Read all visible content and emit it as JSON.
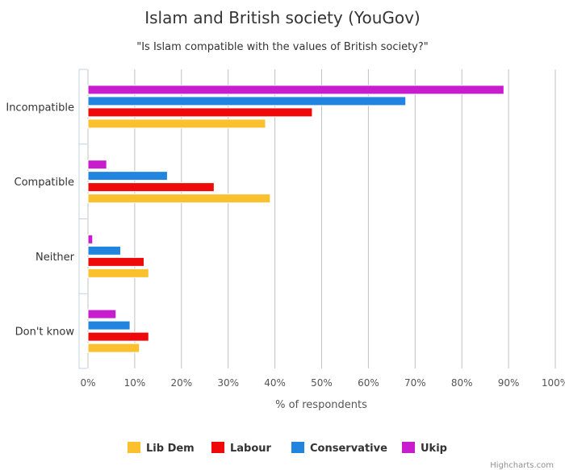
{
  "chart_data": {
    "type": "bar",
    "orientation": "horizontal",
    "title": "Islam and British society (YouGov)",
    "subtitle": "\"Is Islam compatible with the values of British society?\"",
    "categories": [
      "Incompatible",
      "Compatible",
      "Neither",
      "Don't know"
    ],
    "xlabel": "% of respondents",
    "ylabel": "",
    "xlim": [
      0,
      100
    ],
    "ticks": [
      "0%",
      "10%",
      "20%",
      "30%",
      "40%",
      "50%",
      "60%",
      "70%",
      "80%",
      "90%",
      "100%"
    ],
    "grid": true,
    "legend_position": "bottom-center",
    "series": [
      {
        "name": "Ukip",
        "color": "#c81ccf",
        "values": [
          89,
          4,
          1,
          6
        ]
      },
      {
        "name": "Conservative",
        "color": "#2185e0",
        "values": [
          68,
          17,
          7,
          9
        ]
      },
      {
        "name": "Labour",
        "color": "#ee0a0a",
        "values": [
          48,
          27,
          12,
          13
        ]
      },
      {
        "name": "Lib Dem",
        "color": "#fbc02d",
        "values": [
          38,
          39,
          13,
          11
        ]
      }
    ],
    "legend": [
      {
        "name": "Lib Dem",
        "color": "#fbc02d"
      },
      {
        "name": "Labour",
        "color": "#ee0a0a"
      },
      {
        "name": "Conservative",
        "color": "#2185e0"
      },
      {
        "name": "Ukip",
        "color": "#c81ccf"
      }
    ]
  },
  "credit": "Highcharts.com"
}
